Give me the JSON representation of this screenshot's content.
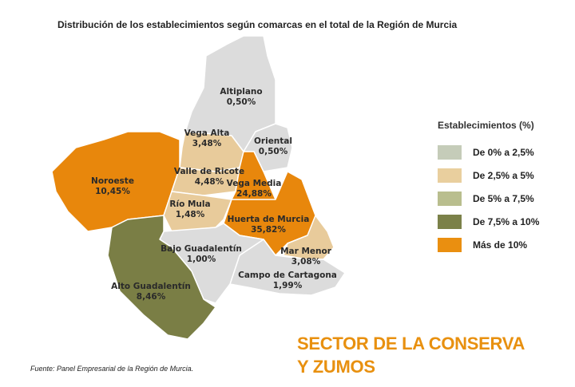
{
  "title": "Distribución de los establecimientos según comarcas en el total de la Región de Murcia",
  "regions": [
    {
      "id": "altiplano",
      "name": "Altiplano",
      "value": "0,50%",
      "color": "#dcdcdc"
    },
    {
      "id": "oriental",
      "name": "Oriental",
      "value": "0,50%",
      "color": "#dcdcdc"
    },
    {
      "id": "vega-alta",
      "name": "Vega Alta",
      "value": "3,48%",
      "color": "#e8cb9b"
    },
    {
      "id": "noroeste",
      "name": "Noroeste",
      "value": "10,45%",
      "color": "#e8870c"
    },
    {
      "id": "valle-de-ricote",
      "name": "Valle de Ricote",
      "value": "4,48%",
      "color": "#e8cb9b"
    },
    {
      "id": "rio-mula",
      "name": "Río Mula",
      "value": "1,48%",
      "color": "#e8cb9b"
    },
    {
      "id": "vega-media",
      "name": "Vega Media",
      "value": "24,88%",
      "color": "#e8870c"
    },
    {
      "id": "huerta-de-murcia",
      "name": "Huerta de Murcia",
      "value": "35,82%",
      "color": "#e8870c"
    },
    {
      "id": "mar-menor",
      "name": "Mar Menor",
      "value": "3,08%",
      "color": "#e8cb9b"
    },
    {
      "id": "campo-de-cartagena",
      "name": "Campo de Cartagona",
      "value": "1,99%",
      "color": "#dcdcdc"
    },
    {
      "id": "bajo-guadalentin",
      "name": "Bajo Guadalentín",
      "value": "1,00%",
      "color": "#dcdcdc"
    },
    {
      "id": "alto-guadalentin",
      "name": "Alto Guadalentín",
      "value": "8,46%",
      "color": "#7a7e45"
    }
  ],
  "legend": {
    "title": "Establecimientos (%)",
    "items": [
      {
        "label": "De 0% a 2,5%",
        "color": "#c5ccb9"
      },
      {
        "label": "De 2,5% a 5%",
        "color": "#e9cf9e"
      },
      {
        "label": "De 5% a 7,5%",
        "color": "#b9be8e"
      },
      {
        "label": "De 7,5% a 10%",
        "color": "#7b8149"
      },
      {
        "label": "Más de 10%",
        "color": "#ea8f10"
      }
    ]
  },
  "source": "Fuente: Panel Empresarial de la Región de Murcia.",
  "sector": {
    "line1": "SECTOR DE LA CONSERVA",
    "line2": "Y ZUMOS"
  }
}
